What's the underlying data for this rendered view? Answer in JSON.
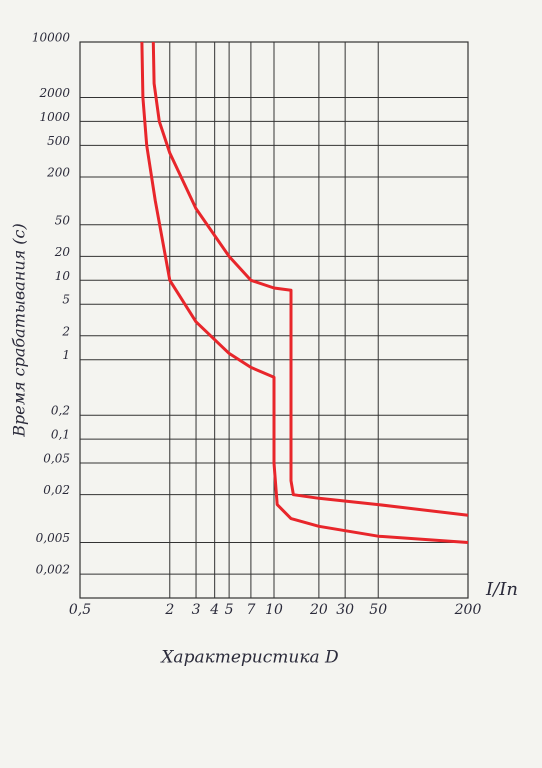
{
  "chart_data": {
    "type": "line",
    "title": "Характеристика D",
    "ylabel": "Время срабатывания (с)",
    "xlabel": "I/In",
    "log_x": true,
    "log_y": true,
    "grid": true,
    "xlim": [
      0.5,
      200
    ],
    "ylim": [
      0.001,
      10000
    ],
    "xticks": [
      {
        "value": 0.5,
        "label": "0,5"
      },
      2,
      3,
      4,
      5,
      7,
      10,
      20,
      30,
      50,
      200
    ],
    "yticks": [
      10000,
      2000,
      1000,
      500,
      200,
      50,
      20,
      10,
      5,
      2,
      1,
      {
        "value": 0.2,
        "label": "0,2"
      },
      {
        "value": 0.1,
        "label": "0,1"
      },
      {
        "value": 0.05,
        "label": "0,05"
      },
      {
        "value": 0.02,
        "label": "0,02"
      },
      {
        "value": 0.005,
        "label": "0,005"
      },
      {
        "value": 0.002,
        "label": "0,002"
      }
    ],
    "series": [
      {
        "color": "#e8262b",
        "x": [
          1.3,
          1.32,
          1.4,
          1.6,
          2,
          3,
          5,
          7,
          10,
          10,
          10,
          10.5,
          13,
          20,
          50,
          200
        ],
        "values": [
          10000,
          2000,
          500,
          100,
          10,
          3,
          1.2,
          0.8,
          0.6,
          0.3,
          0.05,
          0.015,
          0.01,
          0.008,
          0.006,
          0.005
        ]
      },
      {
        "color": "#e8262b",
        "x": [
          1.55,
          1.57,
          1.7,
          2,
          3,
          5,
          7,
          10,
          13,
          13,
          13,
          13.5,
          20,
          50,
          200
        ],
        "values": [
          10000,
          3000,
          1000,
          400,
          80,
          20,
          10,
          8,
          7.5,
          1,
          0.03,
          0.02,
          0.018,
          0.015,
          0.011
        ]
      }
    ]
  }
}
